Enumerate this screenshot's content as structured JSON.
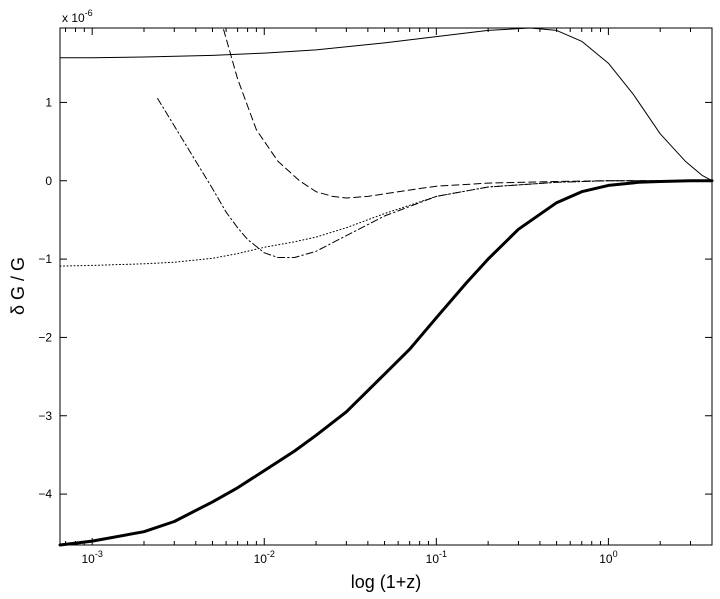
{
  "chart_data": {
    "type": "line",
    "title": "",
    "xlabel": "log (1+z)",
    "ylabel": "δ G / G",
    "y_multiplier_label": "x 10",
    "y_multiplier_exponent": "-6",
    "x_scale": "log",
    "xlim": [
      0.00065,
      4.0
    ],
    "ylim": [
      -4.65,
      1.95
    ],
    "x_ticks": [
      {
        "value": 0.001,
        "base": "10",
        "exp": "-3"
      },
      {
        "value": 0.01,
        "base": "10",
        "exp": "-2"
      },
      {
        "value": 0.1,
        "base": "10",
        "exp": "-1"
      },
      {
        "value": 1,
        "base": "10",
        "exp": "0"
      }
    ],
    "y_ticks": [
      {
        "value": 1,
        "label": "1"
      },
      {
        "value": 0,
        "label": "0"
      },
      {
        "value": -1,
        "label": "−1"
      },
      {
        "value": -2,
        "label": "−2"
      },
      {
        "value": -3,
        "label": "−3"
      },
      {
        "value": -4,
        "label": "−4"
      }
    ],
    "grid": false,
    "series": [
      {
        "style": "solid-thin",
        "x": [
          0.00065,
          0.001,
          0.002,
          0.005,
          0.01,
          0.02,
          0.05,
          0.1,
          0.2,
          0.35,
          0.5,
          0.7,
          1.0,
          1.4,
          2.0,
          2.8,
          3.5,
          4.0
        ],
        "y": [
          1.57,
          1.57,
          1.58,
          1.6,
          1.63,
          1.67,
          1.76,
          1.84,
          1.92,
          1.95,
          1.92,
          1.78,
          1.5,
          1.1,
          0.6,
          0.25,
          0.07,
          0.0
        ]
      },
      {
        "style": "dashed",
        "x": [
          0.0058,
          0.007,
          0.009,
          0.012,
          0.016,
          0.02,
          0.025,
          0.03,
          0.04,
          0.06,
          0.1,
          0.2,
          0.5,
          1.0,
          2.0,
          4.0
        ],
        "y": [
          1.93,
          1.3,
          0.65,
          0.25,
          0.0,
          -0.14,
          -0.2,
          -0.22,
          -0.2,
          -0.14,
          -0.07,
          -0.03,
          -0.01,
          0.0,
          0.0,
          0.0
        ]
      },
      {
        "style": "dash-dot",
        "x": [
          0.0024,
          0.003,
          0.004,
          0.005,
          0.006,
          0.007,
          0.008,
          0.01,
          0.012,
          0.015,
          0.02,
          0.03,
          0.05,
          0.1,
          0.2,
          0.5,
          1.0,
          2.0,
          4.0
        ],
        "y": [
          1.05,
          0.7,
          0.25,
          -0.1,
          -0.4,
          -0.6,
          -0.75,
          -0.92,
          -0.98,
          -0.98,
          -0.9,
          -0.7,
          -0.45,
          -0.2,
          -0.08,
          -0.02,
          0.0,
          0.0,
          0.0
        ]
      },
      {
        "style": "dotted",
        "x": [
          0.00065,
          0.001,
          0.002,
          0.003,
          0.005,
          0.007,
          0.01,
          0.015,
          0.02,
          0.03,
          0.05,
          0.1,
          0.2,
          0.5,
          1.0,
          2.0,
          4.0
        ],
        "y": [
          -1.09,
          -1.08,
          -1.06,
          -1.04,
          -0.99,
          -0.93,
          -0.85,
          -0.78,
          -0.72,
          -0.6,
          -0.42,
          -0.2,
          -0.08,
          -0.02,
          0.0,
          0.0,
          0.0
        ]
      },
      {
        "style": "solid-thick",
        "x": [
          0.00065,
          0.001,
          0.002,
          0.003,
          0.005,
          0.007,
          0.01,
          0.015,
          0.02,
          0.03,
          0.05,
          0.07,
          0.1,
          0.15,
          0.2,
          0.3,
          0.5,
          0.7,
          1.0,
          1.5,
          2.0,
          3.0,
          4.0
        ],
        "y": [
          -4.65,
          -4.6,
          -4.48,
          -4.35,
          -4.1,
          -3.92,
          -3.7,
          -3.45,
          -3.25,
          -2.95,
          -2.47,
          -2.15,
          -1.75,
          -1.3,
          -1.0,
          -0.62,
          -0.28,
          -0.14,
          -0.06,
          -0.02,
          -0.01,
          0.0,
          0.0
        ]
      }
    ]
  }
}
